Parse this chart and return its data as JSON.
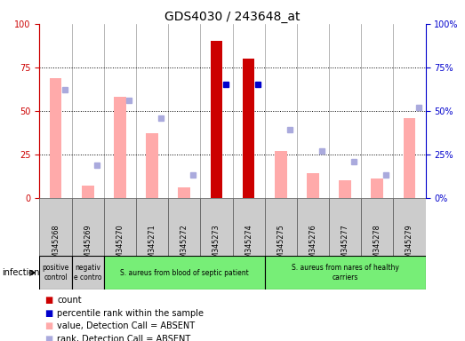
{
  "title": "GDS4030 / 243648_at",
  "samples": [
    "GSM345268",
    "GSM345269",
    "GSM345270",
    "GSM345271",
    "GSM345272",
    "GSM345273",
    "GSM345274",
    "GSM345275",
    "GSM345276",
    "GSM345277",
    "GSM345278",
    "GSM345279"
  ],
  "count_values": [
    null,
    null,
    null,
    null,
    null,
    90,
    80,
    null,
    null,
    null,
    null,
    null
  ],
  "rank_values": [
    null,
    null,
    null,
    null,
    null,
    65,
    65,
    null,
    null,
    null,
    null,
    null
  ],
  "absent_value": [
    69,
    7,
    58,
    37,
    6,
    null,
    null,
    27,
    14,
    10,
    11,
    46
  ],
  "absent_rank": [
    62,
    19,
    56,
    46,
    13,
    null,
    null,
    39,
    27,
    21,
    13,
    52
  ],
  "count_color": "#cc0000",
  "rank_color": "#0000cc",
  "absent_value_color": "#ffaaaa",
  "absent_rank_color": "#aaaadd",
  "ylim": [
    0,
    100
  ],
  "yticks": [
    0,
    25,
    50,
    75,
    100
  ],
  "groups": [
    {
      "label": "positive\ncontrol",
      "start": 0,
      "end": 1,
      "color": "#cccccc"
    },
    {
      "label": "negativ\ne contro",
      "start": 1,
      "end": 2,
      "color": "#cccccc"
    },
    {
      "label": "S. aureus from blood of septic patient",
      "start": 2,
      "end": 7,
      "color": "#77ee77"
    },
    {
      "label": "S. aureus from nares of healthy\ncarriers",
      "start": 7,
      "end": 12,
      "color": "#77ee77"
    }
  ],
  "legend_items": [
    {
      "label": "count",
      "color": "#cc0000"
    },
    {
      "label": "percentile rank within the sample",
      "color": "#0000cc"
    },
    {
      "label": "value, Detection Call = ABSENT",
      "color": "#ffaaaa"
    },
    {
      "label": "rank, Detection Call = ABSENT",
      "color": "#aaaadd"
    }
  ],
  "infection_label": "infection",
  "bg_color": "#ffffff",
  "tick_label_color": "#cc0000",
  "right_tick_color": "#0000cc"
}
